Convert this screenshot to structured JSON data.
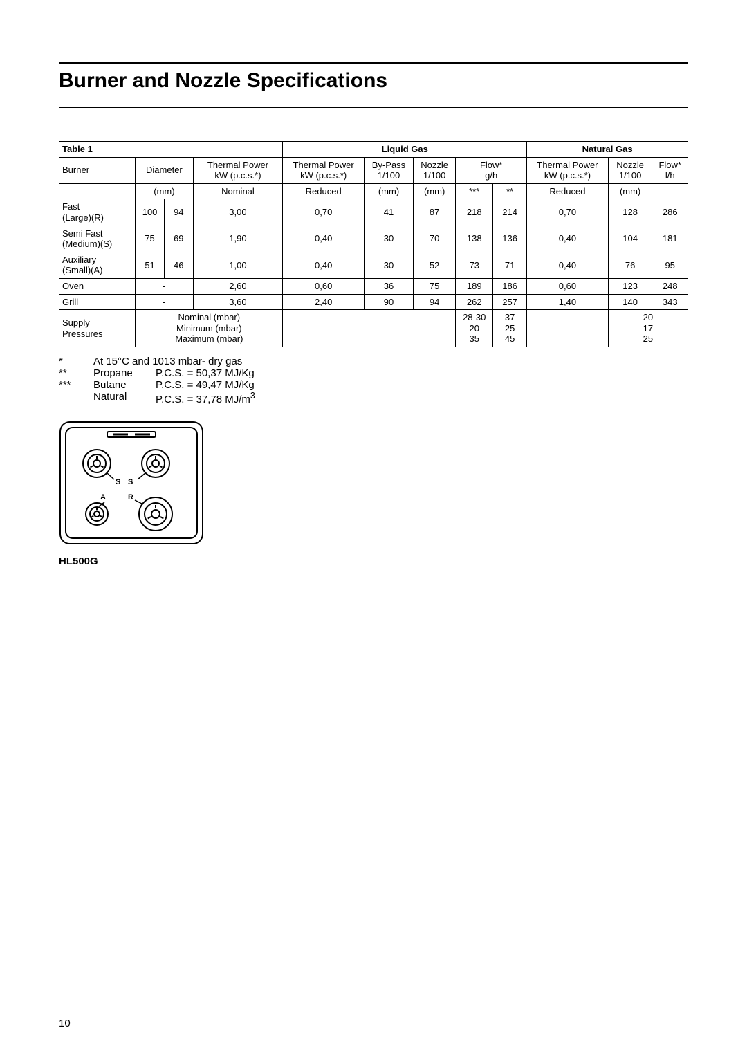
{
  "title": "Burner and Nozzle Specifications",
  "table_label": "Table 1",
  "gas_headers": {
    "liquid": "Liquid Gas",
    "natural": "Natural Gas"
  },
  "col_headers": {
    "burner": "Burner",
    "diameter": "Diameter",
    "tp_nom_l1": "Thermal Power",
    "tp_nom_l2": "kW (p.c.s.*)",
    "tp_red_l1": "Thermal Power",
    "tp_red_l2": "kW (p.c.s.*)",
    "bypass_l1": "By-Pass",
    "bypass_l2": "1/100",
    "nozzle_l1": "Nozzle",
    "nozzle_l2": "1/100",
    "flow_l1": "Flow*",
    "flow_l2_g": "g/h",
    "flow_l2_l": "l/h",
    "nat_tp_l1": "Thermal Power",
    "nat_tp_l2": "kW (p.c.s.*)",
    "nat_nozzle_l1": "Nozzle",
    "nat_nozzle_l2": "1/100"
  },
  "unit_row": {
    "mm": "(mm)",
    "nominal": "Nominal",
    "reduced": "Reduced",
    "stars3": "***",
    "stars2": "**"
  },
  "rows": [
    {
      "name_l1": "Fast",
      "name_l2": "(Large)(R)",
      "d1": "100",
      "d2": "94",
      "tp_nom": "3,00",
      "tp_red": "0,70",
      "bypass": "41",
      "nozzle": "87",
      "flow1": "218",
      "flow2": "214",
      "nat_tp": "0,70",
      "nat_nozzle": "128",
      "nat_flow": "286"
    },
    {
      "name_l1": "Semi Fast",
      "name_l2": "(Medium)(S)",
      "d1": "75",
      "d2": "69",
      "tp_nom": "1,90",
      "tp_red": "0,40",
      "bypass": "30",
      "nozzle": "70",
      "flow1": "138",
      "flow2": "136",
      "nat_tp": "0,40",
      "nat_nozzle": "104",
      "nat_flow": "181"
    },
    {
      "name_l1": "Auxiliary",
      "name_l2": "(Small)(A)",
      "d1": "51",
      "d2": "46",
      "tp_nom": "1,00",
      "tp_red": "0,40",
      "bypass": "30",
      "nozzle": "52",
      "flow1": "73",
      "flow2": "71",
      "nat_tp": "0,40",
      "nat_nozzle": "76",
      "nat_flow": "95"
    },
    {
      "name_l1": "Oven",
      "name_l2": "",
      "d1": "-",
      "d2": "",
      "tp_nom": "2,60",
      "tp_red": "0,60",
      "bypass": "36",
      "nozzle": "75",
      "flow1": "189",
      "flow2": "186",
      "nat_tp": "0,60",
      "nat_nozzle": "123",
      "nat_flow": "248"
    },
    {
      "name_l1": "Grill",
      "name_l2": "",
      "d1": "-",
      "d2": "",
      "tp_nom": "3,60",
      "tp_red": "2,40",
      "bypass": "90",
      "nozzle": "94",
      "flow1": "262",
      "flow2": "257",
      "nat_tp": "1,40",
      "nat_nozzle": "140",
      "nat_flow": "343"
    }
  ],
  "supply": {
    "label_l1": "Supply",
    "label_l2": "Pressures",
    "nom": "Nominal (mbar)",
    "min": "Minimum (mbar)",
    "max": "Maximum (mbar)",
    "liq_col1": {
      "v1": "28-30",
      "v2": "20",
      "v3": "35"
    },
    "liq_col2": {
      "v1": "37",
      "v2": "25",
      "v3": "45"
    },
    "nat": {
      "v1": "20",
      "v2": "17",
      "v3": "25"
    }
  },
  "notes": {
    "n1_sym": "*",
    "n1_text": "At 15°C and 1013 mbar- dry gas",
    "n2_sym": "**",
    "n2_name": "Propane",
    "n2_val": "P.C.S. = 50,37 MJ/Kg",
    "n3_sym": "***",
    "n3_name": "Butane",
    "n3_val": "P.C.S. = 49,47 MJ/Kg",
    "n4_name": "Natural",
    "n4_val_pre": "P.C.S. = 37,78 MJ/m",
    "n4_sup": "3"
  },
  "hob_labels": {
    "s1": "S",
    "s2": "S",
    "a": "A",
    "r": "R"
  },
  "model": "HL500G",
  "page_number": "10",
  "colors": {
    "fg": "#000000",
    "bg": "#ffffff"
  }
}
